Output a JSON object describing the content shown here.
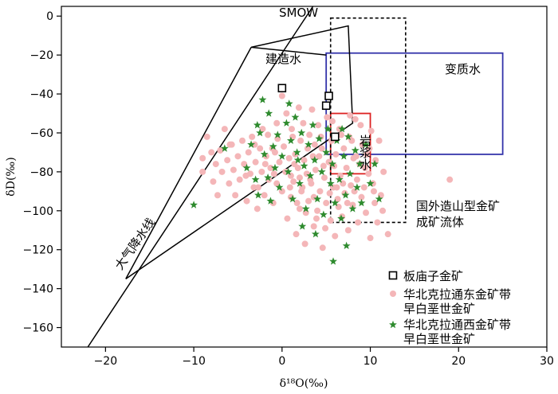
{
  "chart_data": {
    "type": "scatter",
    "xlabel": "δ¹⁸O(‰)",
    "ylabel": "δD(‰)",
    "xlim": [
      -25,
      30
    ],
    "ylim": [
      -170,
      5
    ],
    "xticks": [
      -20,
      -10,
      0,
      10,
      20,
      30
    ],
    "yticks": [
      0,
      -20,
      -40,
      -60,
      -80,
      -100,
      -120,
      -140,
      -160
    ],
    "xtick_labels": [
      "−20",
      "−10",
      "0",
      "10",
      "20",
      "30"
    ],
    "ytick_labels": [
      "0",
      "−20",
      "−40",
      "−60",
      "−80",
      "−100",
      "−120",
      "−140",
      "−160"
    ],
    "lines": {
      "meteoric_water_line": {
        "label": "大气降水线",
        "points": [
          [
            -22,
            -170
          ],
          [
            3.5,
            5
          ]
        ]
      },
      "smow_lines": {
        "label": "SMOW",
        "points": [
          [
            -3.5,
            -16
          ],
          [
            7.5,
            -5
          ],
          [
            8,
            -55
          ],
          [
            -17.7,
            -135
          ]
        ]
      },
      "formation_water_segment": {
        "points": [
          [
            -3.5,
            -16
          ],
          [
            -17.7,
            -135
          ]
        ]
      },
      "formation_water_tie": {
        "label": "建造水",
        "points": [
          [
            -3.5,
            -16
          ],
          [
            5,
            -20
          ]
        ]
      }
    },
    "regions": [
      {
        "label": "变质水",
        "color": "#3333aa",
        "style": "solid",
        "x": [
          5,
          25
        ],
        "y": [
          -71,
          -19
        ]
      },
      {
        "label": "岩浆水",
        "color": "#dd2222",
        "style": "solid",
        "x": [
          5.5,
          10
        ],
        "y": [
          -81,
          -50
        ]
      },
      {
        "label": "国外造山型金矿成矿流体",
        "color": "#000000",
        "style": "dashed",
        "x": [
          5.5,
          14
        ],
        "y": [
          -106,
          -1
        ]
      }
    ],
    "labels": {
      "smow": "SMOW",
      "formation_water": "建造水",
      "metamorphic_water": "变质水",
      "magmatic_water": "岩浆水",
      "foreign_line1": "国外造山型金矿",
      "foreign_line2": "成矿流体",
      "meteoric_line": "大气降水线"
    },
    "series": [
      {
        "name": "板庙子金矿",
        "marker": "square",
        "color": "#000000",
        "points": [
          [
            0,
            -37
          ],
          [
            5.3,
            -41
          ],
          [
            5,
            -46
          ],
          [
            6,
            -62
          ]
        ]
      },
      {
        "name": "华北克拉通东金矿带早白垩世金矿",
        "name_lines": [
          "华北克拉通东金矿带",
          "早白垩世金矿"
        ],
        "marker": "circle",
        "color": "#f4b6b8",
        "points": [
          [
            -9,
            -73
          ],
          [
            -9,
            -80
          ],
          [
            -8.5,
            -62
          ],
          [
            -8,
            -70
          ],
          [
            -7.8,
            -85
          ],
          [
            -7.5,
            -76
          ],
          [
            -7.3,
            -92
          ],
          [
            -7,
            -69
          ],
          [
            -6.8,
            -80
          ],
          [
            -6.5,
            -58
          ],
          [
            -6.2,
            -74
          ],
          [
            -6,
            -86
          ],
          [
            -5.7,
            -66
          ],
          [
            -5.5,
            -79
          ],
          [
            -5.3,
            -92
          ],
          [
            -5,
            -72
          ],
          [
            -4.8,
            -84
          ],
          [
            -4.5,
            -64
          ],
          [
            -4.3,
            -76
          ],
          [
            -4,
            -95
          ],
          [
            -3.8,
            -70
          ],
          [
            -3.6,
            -81
          ],
          [
            -3.4,
            -62
          ],
          [
            -3.2,
            -88
          ],
          [
            -3,
            -75
          ],
          [
            -2.8,
            -99
          ],
          [
            -2.5,
            -68
          ],
          [
            -2.3,
            -80
          ],
          [
            -2,
            -92
          ],
          [
            -1.8,
            -72
          ],
          [
            -1.6,
            -61
          ],
          [
            -1.5,
            -84
          ],
          [
            -1.3,
            -78
          ],
          [
            -1,
            -96
          ],
          [
            -0.8,
            -70
          ],
          [
            -0.6,
            -86
          ],
          [
            -0.5,
            -63
          ],
          [
            -0.3,
            -75
          ],
          [
            0,
            -90
          ],
          [
            0,
            -41
          ],
          [
            0.2,
            -67
          ],
          [
            0.4,
            -80
          ],
          [
            0.6,
            -104
          ],
          [
            0.8,
            -73
          ],
          [
            1,
            -93
          ],
          [
            1.1,
            -58
          ],
          [
            1.3,
            -85
          ],
          [
            1.5,
            -71
          ],
          [
            1.6,
            -112
          ],
          [
            1.8,
            -78
          ],
          [
            2,
            -99
          ],
          [
            2.1,
            -64
          ],
          [
            2.3,
            -88
          ],
          [
            2.5,
            -74
          ],
          [
            2.6,
            -117
          ],
          [
            2.8,
            -81
          ],
          [
            3,
            -95
          ],
          [
            3.1,
            -61
          ],
          [
            3.3,
            -86
          ],
          [
            3.5,
            -72
          ],
          [
            3.6,
            -108
          ],
          [
            3.8,
            -79
          ],
          [
            4,
            -100
          ],
          [
            4.1,
            -56
          ],
          [
            4.3,
            -90
          ],
          [
            4.5,
            -68
          ],
          [
            4.6,
            -119
          ],
          [
            4.8,
            -83
          ],
          [
            5,
            -96
          ],
          [
            5.1,
            -52
          ],
          [
            5.3,
            -75
          ],
          [
            5.5,
            -105
          ],
          [
            5.6,
            -64
          ],
          [
            5.8,
            -88
          ],
          [
            6,
            -113
          ],
          [
            6.1,
            -71
          ],
          [
            6.3,
            -94
          ],
          [
            6.5,
            -58
          ],
          [
            6.6,
            -82
          ],
          [
            6.8,
            -103
          ],
          [
            7,
            -68
          ],
          [
            7.1,
            -91
          ],
          [
            7.3,
            -78
          ],
          [
            7.5,
            -110
          ],
          [
            7.6,
            -62
          ],
          [
            7.8,
            -87
          ],
          [
            8,
            -97
          ],
          [
            8.1,
            -73
          ],
          [
            8.3,
            -53
          ],
          [
            8.5,
            -84
          ],
          [
            8.6,
            -106
          ],
          [
            8.8,
            -76
          ],
          [
            9,
            -93
          ],
          [
            9.1,
            -66
          ],
          [
            9.3,
            -88
          ],
          [
            9.5,
            -101
          ],
          [
            9.6,
            -71
          ],
          [
            9.8,
            -81
          ],
          [
            10,
            -114
          ],
          [
            10.1,
            -59
          ],
          [
            10.3,
            -86
          ],
          [
            10.5,
            -96
          ],
          [
            10.6,
            -74
          ],
          [
            10.8,
            -106
          ],
          [
            11,
            -64
          ],
          [
            11.2,
            -92
          ],
          [
            11.5,
            -80
          ],
          [
            12,
            -112
          ],
          [
            19,
            -84
          ],
          [
            1.2,
            -62
          ],
          [
            2.4,
            -55
          ],
          [
            3.7,
            -66
          ],
          [
            0.5,
            -50
          ],
          [
            -0.6,
            -55
          ],
          [
            1.9,
            -47
          ],
          [
            3.4,
            -48
          ],
          [
            4.4,
            -62
          ],
          [
            2.9,
            -68
          ],
          [
            1.4,
            -76
          ],
          [
            -1.1,
            -68
          ],
          [
            -2.2,
            -58
          ],
          [
            5.9,
            -77
          ],
          [
            6.9,
            -86
          ],
          [
            7.9,
            -64
          ],
          [
            8.9,
            -56
          ],
          [
            9.9,
            -68
          ],
          [
            6.4,
            -98
          ],
          [
            4.9,
            -109
          ],
          [
            3.9,
            -104
          ],
          [
            2.7,
            -101
          ],
          [
            1.7,
            -96
          ],
          [
            0.9,
            -88
          ],
          [
            -0.9,
            -81
          ],
          [
            -2.7,
            -88
          ],
          [
            -4.1,
            -82
          ],
          [
            -5.9,
            -66
          ],
          [
            7.4,
            -96
          ],
          [
            5.4,
            -91
          ],
          [
            3.2,
            -84
          ],
          [
            2.2,
            -90
          ],
          [
            1,
            -82
          ],
          [
            4.7,
            -77
          ],
          [
            6.7,
            -61
          ],
          [
            8.4,
            -72
          ],
          [
            9.4,
            -78
          ],
          [
            10.4,
            -90
          ],
          [
            11.4,
            -100
          ],
          [
            5.7,
            -54
          ],
          [
            7.7,
            -51
          ],
          [
            3.6,
            -93
          ],
          [
            2,
            -83
          ],
          [
            -1.9,
            -76
          ],
          [
            -3.1,
            -66
          ],
          [
            6.2,
            -88
          ],
          [
            4.2,
            -72
          ],
          [
            8.2,
            -90
          ]
        ]
      },
      {
        "name": "华北克拉通西金矿带早白垩世金矿",
        "name_lines": [
          "华北克拉通西金矿带",
          "早白垩世金矿"
        ],
        "marker": "star",
        "color": "#2e8b2e",
        "points": [
          [
            -10,
            -97
          ],
          [
            -6.5,
            -68
          ],
          [
            -4,
            -78
          ],
          [
            -3.5,
            -66
          ],
          [
            -3,
            -84
          ],
          [
            -2.7,
            -92
          ],
          [
            -2.5,
            -60
          ],
          [
            -2,
            -71
          ],
          [
            -1.6,
            -83
          ],
          [
            -1.5,
            -50
          ],
          [
            -1,
            -67
          ],
          [
            -0.8,
            -78
          ],
          [
            -0.5,
            -61
          ],
          [
            -0.3,
            -88
          ],
          [
            0,
            -72
          ],
          [
            0.5,
            -55
          ],
          [
            0.7,
            -80
          ],
          [
            1,
            -64
          ],
          [
            1.2,
            -94
          ],
          [
            1.5,
            -52
          ],
          [
            1.7,
            -70
          ],
          [
            2,
            -86
          ],
          [
            2.2,
            -60
          ],
          [
            2.5,
            -77
          ],
          [
            2.7,
            -99
          ],
          [
            3,
            -66
          ],
          [
            3.2,
            -82
          ],
          [
            3.5,
            -56
          ],
          [
            3.7,
            -74
          ],
          [
            4,
            -94
          ],
          [
            4.2,
            -63
          ],
          [
            4.5,
            -80
          ],
          [
            4.7,
            -102
          ],
          [
            5,
            -70
          ],
          [
            5.2,
            -58
          ],
          [
            5.5,
            -86
          ],
          [
            5.7,
            -76
          ],
          [
            6,
            -96
          ],
          [
            6.2,
            -64
          ],
          [
            6.5,
            -84
          ],
          [
            6.7,
            -104
          ],
          [
            7,
            -72
          ],
          [
            7.2,
            -92
          ],
          [
            7.5,
            -62
          ],
          [
            7.7,
            -81
          ],
          [
            8,
            -99
          ],
          [
            8.3,
            -69
          ],
          [
            8.5,
            -88
          ],
          [
            8.8,
            -76
          ],
          [
            9,
            -96
          ],
          [
            9.5,
            -66
          ],
          [
            10,
            -86
          ],
          [
            10.5,
            -76
          ],
          [
            11,
            -94
          ],
          [
            -2.2,
            -43
          ],
          [
            -2.8,
            -56
          ],
          [
            0.8,
            -45
          ],
          [
            -1.3,
            -95
          ],
          [
            2.3,
            -108
          ],
          [
            3.8,
            -112
          ],
          [
            5.8,
            -126
          ],
          [
            7.3,
            -118
          ],
          [
            1.8,
            -74
          ],
          [
            6.8,
            -58
          ]
        ]
      }
    ]
  }
}
